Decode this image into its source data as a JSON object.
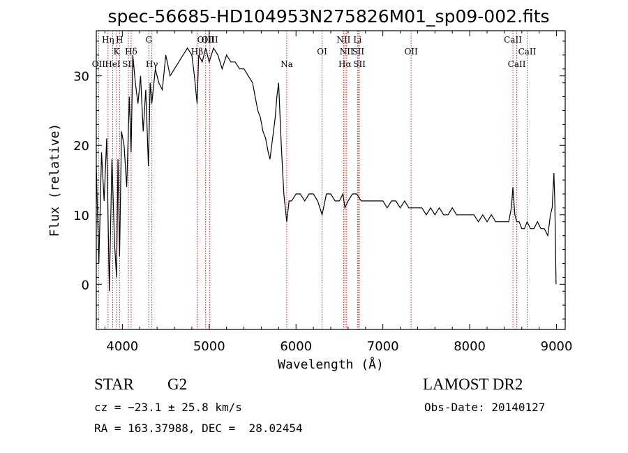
{
  "chart_data": {
    "type": "line",
    "title": "spec-56685-HD104953N275826M01_sp09-002.fits",
    "xlabel": "Wavelength (Å)",
    "ylabel": "Flux (relative)",
    "xlim": [
      3700,
      9100
    ],
    "ylim": [
      -6.5,
      36.5
    ],
    "xticks": [
      4000,
      5000,
      6000,
      7000,
      8000,
      9000
    ],
    "yticks": [
      0,
      10,
      20,
      30
    ],
    "xtick_labels": [
      "4000",
      "5000",
      "6000",
      "7000",
      "8000",
      "9000"
    ],
    "ytick_labels": [
      "0",
      "10",
      "20",
      "30"
    ],
    "grid": false,
    "series": [
      {
        "color": "#000000",
        "x": [
          3700,
          3730,
          3760,
          3790,
          3820,
          3850,
          3880,
          3910,
          3933,
          3950,
          3968,
          3990,
          4020,
          4050,
          4080,
          4101,
          4120,
          4150,
          4180,
          4210,
          4240,
          4270,
          4300,
          4320,
          4340,
          4380,
          4420,
          4460,
          4500,
          4550,
          4600,
          4650,
          4700,
          4750,
          4800,
          4830,
          4861,
          4880,
          4920,
          4960,
          5000,
          5050,
          5100,
          5150,
          5200,
          5250,
          5300,
          5350,
          5400,
          5450,
          5500,
          5530,
          5560,
          5590,
          5620,
          5650,
          5680,
          5700,
          5720,
          5740,
          5760,
          5780,
          5800,
          5830,
          5860,
          5893,
          5920,
          5950,
          6000,
          6050,
          6100,
          6150,
          6200,
          6250,
          6300,
          6350,
          6400,
          6450,
          6500,
          6540,
          6563,
          6600,
          6650,
          6700,
          6750,
          6800,
          6850,
          6900,
          6950,
          7000,
          7050,
          7100,
          7150,
          7200,
          7250,
          7300,
          7350,
          7400,
          7450,
          7500,
          7550,
          7600,
          7650,
          7700,
          7750,
          7800,
          7850,
          7900,
          7950,
          8000,
          8050,
          8100,
          8150,
          8200,
          8250,
          8300,
          8350,
          8400,
          8450,
          8480,
          8498,
          8520,
          8542,
          8570,
          8600,
          8630,
          8662,
          8700,
          8740,
          8780,
          8820,
          8860,
          8900,
          8930,
          8950,
          8970,
          8980,
          8995
        ],
        "y": [
          17,
          3,
          19,
          12,
          21,
          -1,
          18,
          6,
          1,
          18,
          4,
          22,
          20,
          14,
          27,
          19,
          33,
          29,
          26,
          30,
          22,
          28,
          17,
          29,
          26,
          31,
          29,
          28,
          33,
          30,
          31,
          32,
          33,
          34,
          33,
          30,
          26,
          33,
          32,
          34,
          32,
          34,
          33,
          31,
          33,
          32,
          32,
          31,
          31,
          30,
          29,
          27,
          25,
          24,
          22,
          21,
          19,
          18,
          20,
          22,
          24,
          27,
          29,
          20,
          13,
          9,
          12,
          12,
          13,
          13,
          12,
          13,
          13,
          12,
          10,
          13,
          13,
          12,
          12,
          13,
          11,
          12,
          13,
          13,
          12,
          12,
          12,
          12,
          12,
          12,
          11,
          12,
          12,
          11,
          12,
          11,
          11,
          11,
          11,
          10,
          11,
          10,
          11,
          10,
          10,
          11,
          10,
          10,
          10,
          10,
          10,
          9,
          10,
          9,
          10,
          9,
          9,
          9,
          9,
          11,
          14,
          10,
          9,
          9,
          8,
          8,
          9,
          8,
          8,
          9,
          8,
          8,
          7,
          10,
          11,
          16,
          12,
          0
        ]
      }
    ],
    "lines": [
      {
        "label": "OII",
        "x": 3727,
        "tier": 3
      },
      {
        "label": "Hη",
        "x": 3835,
        "tier": 1
      },
      {
        "label": "HeI",
        "x": 3889,
        "tier": 3
      },
      {
        "label": "K",
        "x": 3933,
        "tier": 2
      },
      {
        "label": "H",
        "x": 3968,
        "tier": 1
      },
      {
        "label": "SII",
        "x": 4070,
        "tier": 3
      },
      {
        "label": "Hδ",
        "x": 4101,
        "tier": 2
      },
      {
        "label": "G",
        "x": 4305,
        "tier": 1
      },
      {
        "label": "Hγ",
        "x": 4340,
        "tier": 3
      },
      {
        "label": "Hβ",
        "x": 4861,
        "tier": 2
      },
      {
        "label": "OIII",
        "x": 4959,
        "tier": 1
      },
      {
        "label": "OIII",
        "x": 5007,
        "tier": 1
      },
      {
        "label": "Na",
        "x": 5893,
        "tier": 3
      },
      {
        "label": "OI",
        "x": 6300,
        "tier": 2
      },
      {
        "label": "NII",
        "x": 6548,
        "tier": 1
      },
      {
        "label": "Hα",
        "x": 6563,
        "tier": 3
      },
      {
        "label": "NII",
        "x": 6583,
        "tier": 2
      },
      {
        "label": "Li",
        "x": 6708,
        "tier": 1
      },
      {
        "label": "SII",
        "x": 6716,
        "tier": 2
      },
      {
        "label": "SII",
        "x": 6731,
        "tier": 3
      },
      {
        "label": "OII",
        "x": 7325,
        "tier": 2
      },
      {
        "label": "CaII",
        "x": 8498,
        "tier": 1
      },
      {
        "label": "CaII",
        "x": 8542,
        "tier": 3
      },
      {
        "label": "CaII",
        "x": 8662,
        "tier": 2
      }
    ]
  },
  "info": {
    "object_type": "STAR",
    "spectral_class": "G2",
    "survey": "LAMOST DR2",
    "velocity": "cz = −23.1 ± 25.8 km/s",
    "obs_date": "Obs-Date: 20140127",
    "coords": "RA = 163.37988, DEC =  28.02454"
  }
}
